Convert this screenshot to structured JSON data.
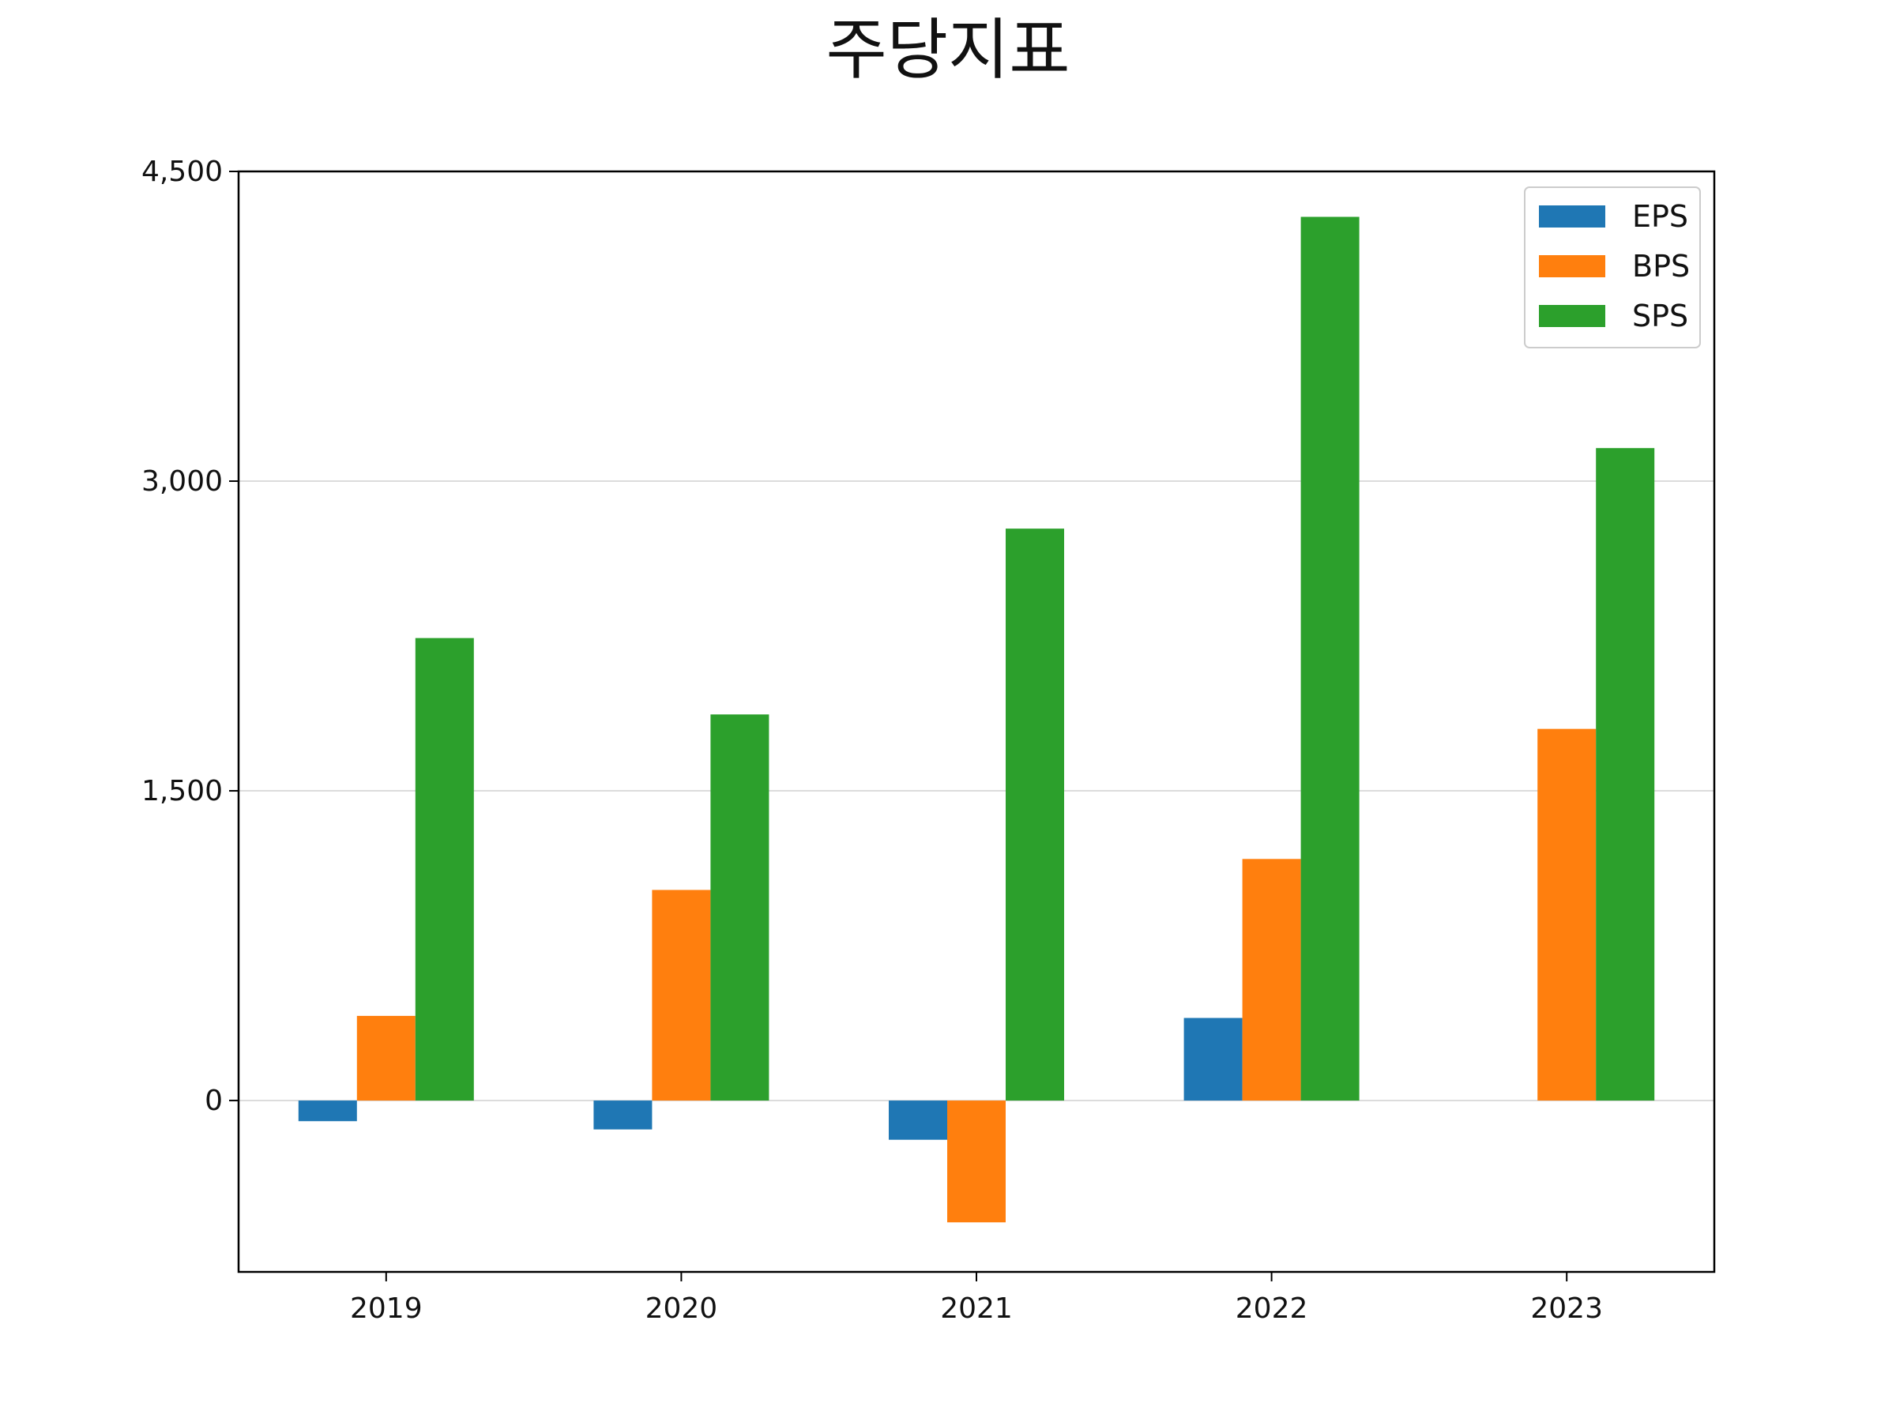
{
  "chart_data": {
    "type": "bar",
    "title": "주당지표",
    "xlabel": "",
    "ylabel": "",
    "categories": [
      "2019",
      "2020",
      "2021",
      "2022",
      "2023"
    ],
    "series": [
      {
        "name": "EPS",
        "color": "#1f77b4",
        "values": [
          -100,
          -140,
          -190,
          400,
          null
        ]
      },
      {
        "name": "BPS",
        "color": "#ff7f0e",
        "values": [
          410,
          1020,
          -590,
          1170,
          1800
        ]
      },
      {
        "name": "SPS",
        "color": "#2ca02c",
        "values": [
          2240,
          1870,
          2770,
          4280,
          3160
        ]
      }
    ],
    "ylim": [
      -830,
      4500
    ],
    "yticks": [
      0,
      1500,
      3000,
      4500
    ],
    "ytick_labels": [
      "0",
      "1,500",
      "3,000",
      "4,500"
    ],
    "grid": "horizontal",
    "legend_position": "top-right"
  }
}
